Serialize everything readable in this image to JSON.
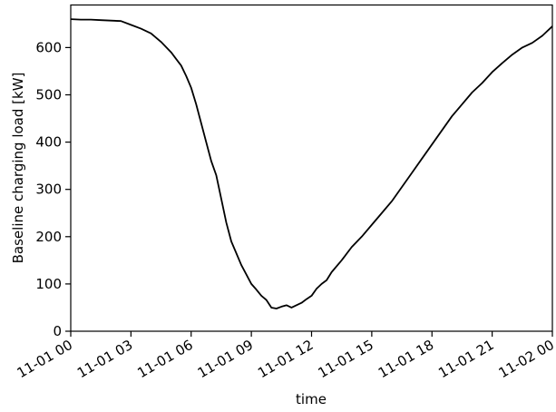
{
  "chart_data": {
    "type": "line",
    "title": "",
    "xlabel": "time",
    "ylabel": "Baseline charging load [kW]",
    "xlim": [
      "2023-11-01 00:00",
      "2023-11-02 00:00"
    ],
    "ylim": [
      0,
      690
    ],
    "grid": false,
    "legend": "none",
    "line_color": "#000000",
    "x_ticks": [
      {
        "label": "11-01 00",
        "hour": 0
      },
      {
        "label": "11-01 03",
        "hour": 3
      },
      {
        "label": "11-01 06",
        "hour": 6
      },
      {
        "label": "11-01 09",
        "hour": 9
      },
      {
        "label": "11-01 12",
        "hour": 12
      },
      {
        "label": "11-01 15",
        "hour": 15
      },
      {
        "label": "11-01 18",
        "hour": 18
      },
      {
        "label": "11-01 21",
        "hour": 21
      },
      {
        "label": "11-02 00",
        "hour": 24
      }
    ],
    "y_ticks": [
      0,
      100,
      200,
      300,
      400,
      500,
      600
    ],
    "series": [
      {
        "name": "",
        "x": [
          "00:00",
          "00:30",
          "01:00",
          "01:30",
          "02:00",
          "02:30",
          "03:00",
          "03:30",
          "04:00",
          "04:30",
          "05:00",
          "05:15",
          "05:30",
          "05:45",
          "06:00",
          "06:15",
          "06:30",
          "06:45",
          "07:00",
          "07:15",
          "07:30",
          "07:45",
          "08:00",
          "08:15",
          "08:30",
          "08:45",
          "09:00",
          "09:15",
          "09:30",
          "09:45",
          "10:00",
          "10:15",
          "10:30",
          "10:45",
          "11:00",
          "11:15",
          "11:30",
          "11:45",
          "12:00",
          "12:15",
          "12:30",
          "12:45",
          "13:00",
          "13:30",
          "14:00",
          "14:30",
          "15:00",
          "15:30",
          "16:00",
          "16:30",
          "17:00",
          "17:30",
          "18:00",
          "18:30",
          "19:00",
          "19:30",
          "20:00",
          "20:30",
          "21:00",
          "21:30",
          "22:00",
          "22:30",
          "23:00",
          "23:30",
          "24:00"
        ],
        "y": [
          660,
          659,
          659,
          658,
          657,
          656,
          648,
          640,
          630,
          612,
          590,
          576,
          562,
          540,
          515,
          480,
          440,
          400,
          360,
          330,
          280,
          230,
          190,
          165,
          140,
          120,
          100,
          88,
          75,
          66,
          50,
          48,
          52,
          55,
          50,
          55,
          60,
          68,
          75,
          90,
          100,
          108,
          125,
          150,
          178,
          200,
          225,
          250,
          275,
          305,
          335,
          365,
          395,
          425,
          455,
          480,
          505,
          525,
          548,
          567,
          585,
          600,
          610,
          625,
          645
        ]
      }
    ]
  }
}
